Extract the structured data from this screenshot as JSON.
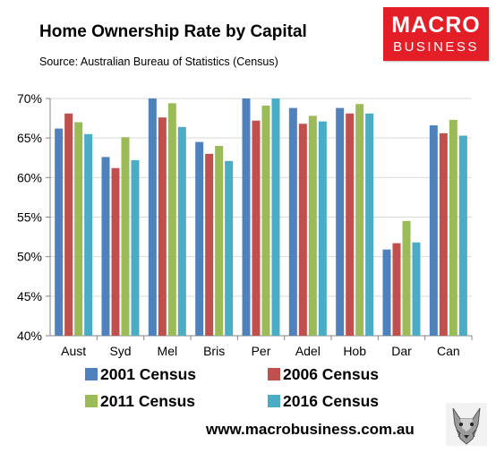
{
  "title": "Home Ownership Rate by Capital",
  "subtitle": "Source: Australian Bureau of Statistics (Census)",
  "logo": {
    "line1": "MACRO",
    "line2": "BUSINESS"
  },
  "footer": "www.macrobusiness.com.au",
  "icons": {
    "wolf": "wolf-icon"
  },
  "colors": {
    "series": [
      "#4f81bd",
      "#c0504d",
      "#9bbb59",
      "#4bacc6"
    ],
    "logo_bg": "#e41e26"
  },
  "chart_data": {
    "type": "bar",
    "title": "Home Ownership Rate by Capital",
    "xlabel": "",
    "ylabel": "",
    "ylim": [
      0.4,
      0.7
    ],
    "yticks": [
      0.4,
      0.45,
      0.5,
      0.55,
      0.6,
      0.65,
      0.7
    ],
    "ytick_labels": [
      "40%",
      "45%",
      "50%",
      "55%",
      "60%",
      "65%",
      "70%"
    ],
    "grid": true,
    "legend_position": "bottom",
    "categories": [
      "Aust",
      "Syd",
      "Mel",
      "Bris",
      "Per",
      "Adel",
      "Hob",
      "Dar",
      "Can"
    ],
    "series": [
      {
        "name": "2001 Census",
        "color": "#4f81bd",
        "values": [
          0.662,
          0.626,
          0.7,
          0.645,
          0.7,
          0.688,
          0.688,
          0.509,
          0.666
        ]
      },
      {
        "name": "2006 Census",
        "color": "#c0504d",
        "values": [
          0.681,
          0.612,
          0.676,
          0.63,
          0.672,
          0.668,
          0.681,
          0.517,
          0.656
        ]
      },
      {
        "name": "2011 Census",
        "color": "#9bbb59",
        "values": [
          0.67,
          0.651,
          0.694,
          0.64,
          0.691,
          0.678,
          0.693,
          0.545,
          0.673
        ]
      },
      {
        "name": "2016 Census",
        "color": "#4bacc6",
        "values": [
          0.655,
          0.622,
          0.664,
          0.621,
          0.7,
          0.671,
          0.681,
          0.518,
          0.653
        ]
      }
    ]
  }
}
